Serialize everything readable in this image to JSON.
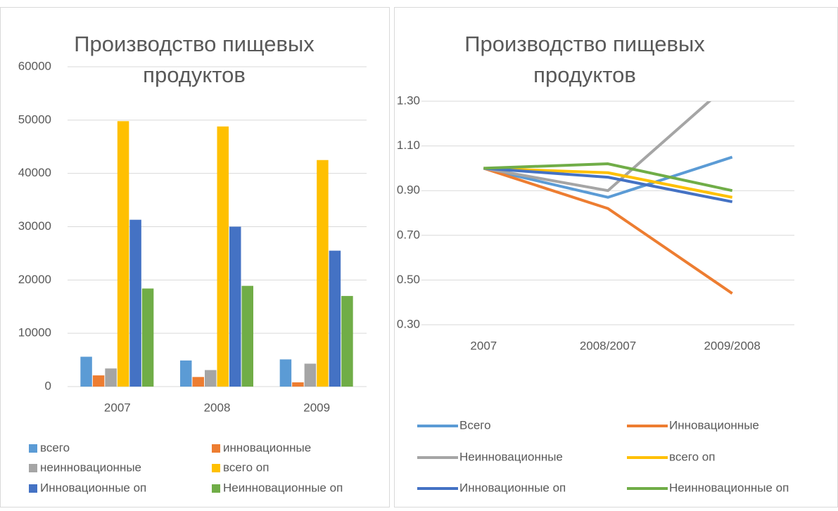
{
  "chart_data": [
    {
      "type": "bar",
      "title": "Производство пищевых продуктов",
      "categories": [
        "2007",
        "2008",
        "2009"
      ],
      "series": [
        {
          "name": "всего",
          "color": "#5b9bd5",
          "values": [
            5600,
            4900,
            5100
          ]
        },
        {
          "name": "инновационные",
          "color": "#ed7d31",
          "values": [
            2100,
            1800,
            800
          ]
        },
        {
          "name": "неинновационные",
          "color": "#a5a5a5",
          "values": [
            3400,
            3100,
            4300
          ]
        },
        {
          "name": "всего оп",
          "color": "#ffc000",
          "values": [
            49800,
            48800,
            42500
          ]
        },
        {
          "name": "Инновационные оп",
          "color": "#4472c4",
          "values": [
            31300,
            30000,
            25500
          ]
        },
        {
          "name": "Неинновационные оп",
          "color": "#70ad47",
          "values": [
            18400,
            18900,
            17000
          ]
        }
      ],
      "ylim": [
        0,
        60000
      ],
      "yticks": [
        0,
        10000,
        20000,
        30000,
        40000,
        50000,
        60000
      ],
      "grid": true,
      "legend": "bottom"
    },
    {
      "type": "line",
      "title": "Производство пищевых продуктов",
      "categories": [
        "2007",
        "2008/2007",
        "2009/2008"
      ],
      "series": [
        {
          "name": "Всего",
          "color": "#5b9bd5",
          "values": [
            1.0,
            0.87,
            1.05
          ]
        },
        {
          "name": "Инновационные",
          "color": "#ed7d31",
          "values": [
            1.0,
            0.82,
            0.44
          ]
        },
        {
          "name": "Неинновационные",
          "color": "#a5a5a5",
          "values": [
            1.0,
            0.9,
            1.39
          ]
        },
        {
          "name": "всего оп",
          "color": "#ffc000",
          "values": [
            1.0,
            0.98,
            0.87
          ]
        },
        {
          "name": "Инновационные оп",
          "color": "#4472c4",
          "values": [
            1.0,
            0.96,
            0.85
          ]
        },
        {
          "name": "Неинновационные оп",
          "color": "#70ad47",
          "values": [
            1.0,
            1.02,
            0.9
          ]
        }
      ],
      "ylim": [
        0.3,
        1.3
      ],
      "yticks": [
        {
          "value": 0.3,
          "label": "0.30"
        },
        {
          "value": 0.5,
          "label": "0.50"
        },
        {
          "value": 0.7,
          "label": "0.70"
        },
        {
          "value": 0.9,
          "label": "0.90"
        },
        {
          "value": 1.1,
          "label": "1.10"
        },
        {
          "value": 1.3,
          "label": "1.30"
        }
      ],
      "grid": true,
      "legend": "bottom"
    }
  ]
}
